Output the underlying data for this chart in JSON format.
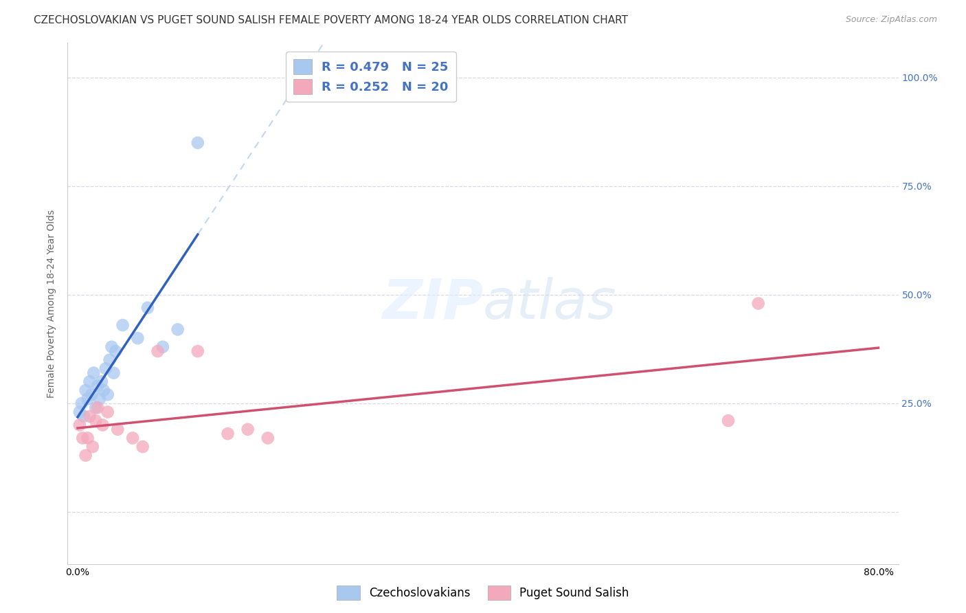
{
  "title": "CZECHOSLOVAKIAN VS PUGET SOUND SALISH FEMALE POVERTY AMONG 18-24 YEAR OLDS CORRELATION CHART",
  "source": "Source: ZipAtlas.com",
  "ylabel": "Female Poverty Among 18-24 Year Olds",
  "r_czech": 0.479,
  "n_czech": 25,
  "r_puget": 0.252,
  "n_puget": 20,
  "color_czech": "#a8c8f0",
  "color_puget": "#f4a8bc",
  "line_color_czech": "#3060c0",
  "line_color_puget": "#d05070",
  "dashed_color": "#c0d8f0",
  "watermark_color": "#ddeeff",
  "legend_label_czech": "Czechoslovakians",
  "legend_label_puget": "Puget Sound Salish",
  "czech_x": [
    0.002,
    0.004,
    0.006,
    0.008,
    0.01,
    0.012,
    0.014,
    0.016,
    0.018,
    0.02,
    0.022,
    0.024,
    0.026,
    0.028,
    0.03,
    0.032,
    0.034,
    0.036,
    0.038,
    0.045,
    0.06,
    0.07,
    0.085,
    0.1,
    0.12
  ],
  "czech_y": [
    0.23,
    0.25,
    0.22,
    0.28,
    0.26,
    0.3,
    0.27,
    0.32,
    0.24,
    0.29,
    0.26,
    0.3,
    0.28,
    0.33,
    0.27,
    0.35,
    0.38,
    0.32,
    0.37,
    0.43,
    0.4,
    0.47,
    0.38,
    0.42,
    0.85
  ],
  "puget_x": [
    0.002,
    0.005,
    0.008,
    0.01,
    0.012,
    0.015,
    0.018,
    0.02,
    0.025,
    0.03,
    0.04,
    0.055,
    0.065,
    0.08,
    0.12,
    0.15,
    0.17,
    0.19,
    0.65,
    0.68
  ],
  "puget_y": [
    0.2,
    0.17,
    0.13,
    0.17,
    0.22,
    0.15,
    0.21,
    0.24,
    0.2,
    0.23,
    0.19,
    0.17,
    0.15,
    0.37,
    0.37,
    0.18,
    0.19,
    0.17,
    0.21,
    0.48
  ],
  "background_color": "#ffffff",
  "grid_color": "#d8d8e8",
  "xlim_min": -0.01,
  "xlim_max": 0.82,
  "ylim_min": -0.12,
  "ylim_max": 1.08,
  "xtick_positions": [
    0.0,
    0.2,
    0.4,
    0.6,
    0.8
  ],
  "xtick_labels": [
    "0.0%",
    "",
    "",
    "",
    "80.0%"
  ],
  "ytick_positions": [
    0.0,
    0.25,
    0.5,
    0.75,
    1.0
  ],
  "ytick_labels_right": [
    "",
    "25.0%",
    "50.0%",
    "75.0%",
    "100.0%"
  ],
  "title_fontsize": 11,
  "axis_label_fontsize": 10,
  "tick_fontsize": 10,
  "legend_fontsize": 13,
  "source_fontsize": 9,
  "scatter_size": 180
}
